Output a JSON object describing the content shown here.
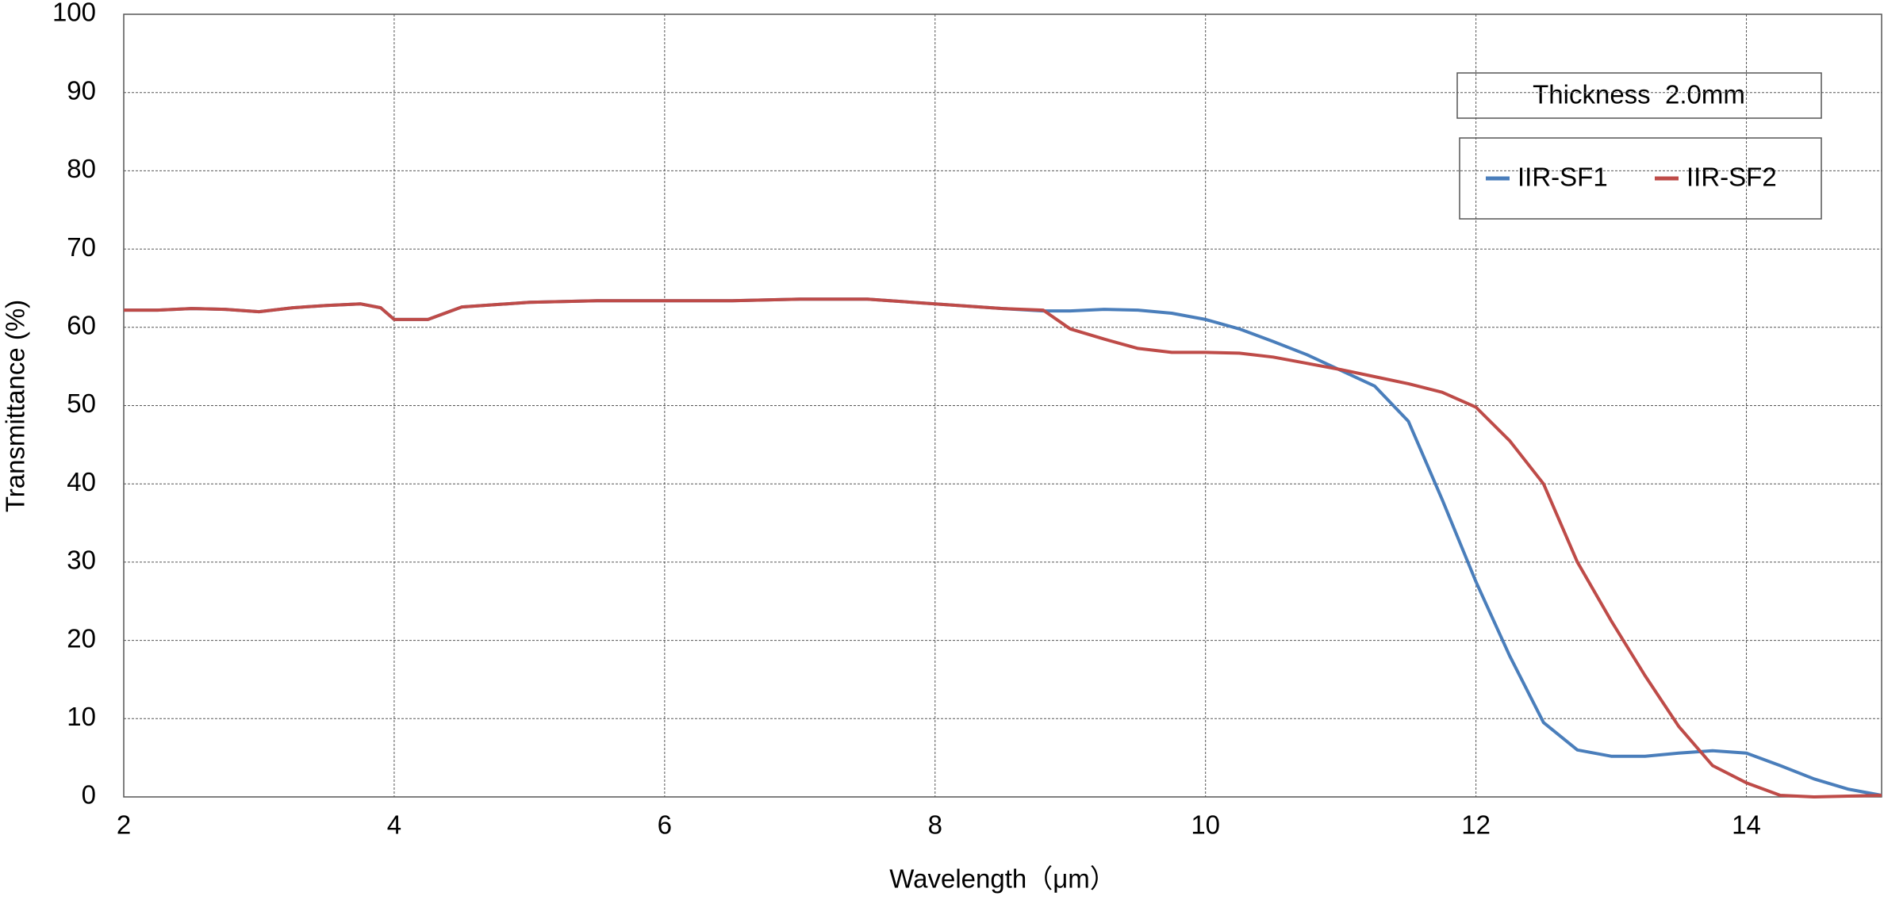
{
  "chart_data": {
    "type": "line",
    "x_label": "Wavelength（μm）",
    "y_label": "Transmittance (%)",
    "annotation": "Thickness  2.0mm",
    "x": [
      2,
      2.25,
      2.5,
      2.75,
      3,
      3.25,
      3.5,
      3.75,
      3.9,
      4,
      4.25,
      4.5,
      5,
      5.5,
      6,
      6.5,
      7,
      7.5,
      8,
      8.5,
      8.8,
      9,
      9.25,
      9.5,
      9.75,
      10,
      10.25,
      10.5,
      10.75,
      11,
      11.25,
      11.5,
      11.75,
      12,
      12.25,
      12.5,
      12.75,
      13,
      13.25,
      13.5,
      13.75,
      14,
      14.25,
      14.5,
      14.75,
      15
    ],
    "series": [
      {
        "name": "IIR-SF1",
        "color": "#4a7ebb",
        "values": [
          62.2,
          62.2,
          62.4,
          62.3,
          62,
          62.5,
          62.8,
          63,
          62.5,
          61,
          61,
          62.6,
          63.2,
          63.4,
          63.4,
          63.4,
          63.6,
          63.6,
          63,
          62.4,
          62.1,
          62.1,
          62.3,
          62.2,
          61.8,
          61,
          59.8,
          58.2,
          56.5,
          54.5,
          52.5,
          48,
          38,
          27.5,
          18,
          9.5,
          6,
          5.2,
          5.2,
          5.6,
          5.9,
          5.6,
          4,
          2.3,
          1,
          0.2
        ]
      },
      {
        "name": "IIR-SF2",
        "color": "#be4b48",
        "values": [
          62.2,
          62.2,
          62.4,
          62.3,
          62,
          62.5,
          62.8,
          63,
          62.5,
          61,
          61,
          62.6,
          63.2,
          63.4,
          63.4,
          63.4,
          63.6,
          63.6,
          63,
          62.4,
          62.2,
          59.8,
          58.5,
          57.3,
          56.8,
          56.8,
          56.7,
          56.2,
          55.4,
          54.6,
          53.7,
          52.8,
          51.7,
          49.8,
          45.5,
          40,
          30,
          22.5,
          15.5,
          9,
          4,
          1.8,
          0.2,
          0,
          0.1,
          0.2
        ]
      }
    ],
    "xlim": [
      2,
      15
    ],
    "xticks": [
      2,
      4,
      6,
      8,
      10,
      12,
      14
    ],
    "ylim": [
      0,
      100
    ],
    "yticks": [
      0,
      10,
      20,
      30,
      40,
      50,
      60,
      70,
      80,
      90,
      100
    ],
    "grid": true
  }
}
